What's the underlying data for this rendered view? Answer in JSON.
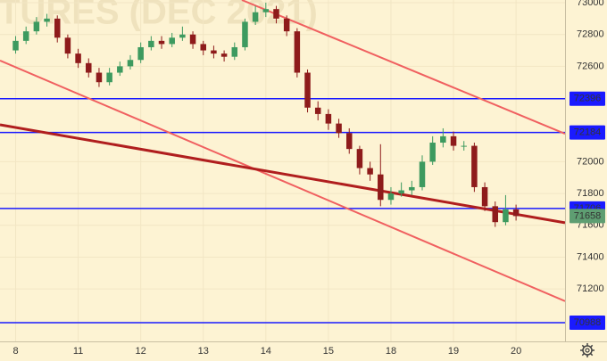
{
  "chart_data": {
    "type": "candlestick",
    "title": "TURES (DEC 2021)",
    "x": [
      0,
      1,
      2,
      3,
      4,
      5,
      6,
      7,
      8,
      9,
      10,
      11,
      12,
      13,
      14,
      15,
      16,
      17,
      18,
      19,
      20,
      21,
      22,
      23,
      24,
      25,
      26,
      27,
      28,
      29,
      30,
      31,
      32,
      33,
      34,
      35,
      36,
      37,
      38,
      39,
      40,
      41,
      42,
      43,
      44,
      45,
      46,
      47,
      48
    ],
    "ohlc": [
      [
        72700,
        72790,
        72680,
        72760
      ],
      [
        72760,
        72850,
        72740,
        72820
      ],
      [
        72820,
        72910,
        72800,
        72880
      ],
      [
        72880,
        72930,
        72850,
        72900
      ],
      [
        72900,
        72920,
        72750,
        72780
      ],
      [
        72780,
        72800,
        72650,
        72680
      ],
      [
        72680,
        72710,
        72590,
        72620
      ],
      [
        72620,
        72650,
        72530,
        72560
      ],
      [
        72560,
        72590,
        72470,
        72500
      ],
      [
        72500,
        72590,
        72480,
        72560
      ],
      [
        72560,
        72630,
        72540,
        72600
      ],
      [
        72600,
        72670,
        72580,
        72640
      ],
      [
        72640,
        72750,
        72620,
        72720
      ],
      [
        72720,
        72790,
        72700,
        72760
      ],
      [
        72760,
        72790,
        72710,
        72740
      ],
      [
        72740,
        72810,
        72720,
        72780
      ],
      [
        72780,
        72850,
        72760,
        72800
      ],
      [
        72800,
        72820,
        72710,
        72740
      ],
      [
        72740,
        72760,
        72670,
        72700
      ],
      [
        72700,
        72730,
        72650,
        72680
      ],
      [
        72680,
        72700,
        72630,
        72660
      ],
      [
        72660,
        72750,
        72640,
        72720
      ],
      [
        72720,
        72900,
        72700,
        72880
      ],
      [
        72880,
        72980,
        72860,
        72940
      ],
      [
        72940,
        73000,
        72910,
        72960
      ],
      [
        72960,
        72980,
        72870,
        72900
      ],
      [
        72900,
        72920,
        72790,
        72820
      ],
      [
        72820,
        72840,
        72530,
        72560
      ],
      [
        72560,
        72580,
        72310,
        72340
      ],
      [
        72340,
        72380,
        72260,
        72300
      ],
      [
        72300,
        72330,
        72200,
        72240
      ],
      [
        72240,
        72270,
        72150,
        72180
      ],
      [
        72180,
        72210,
        72050,
        72080
      ],
      [
        72080,
        72100,
        71920,
        71960
      ],
      [
        71960,
        72000,
        71880,
        71920
      ],
      [
        71920,
        72110,
        71720,
        71760
      ],
      [
        71760,
        71840,
        71730,
        71800
      ],
      [
        71800,
        71870,
        71780,
        71820
      ],
      [
        71820,
        71880,
        71790,
        71840
      ],
      [
        71840,
        72040,
        71820,
        72000
      ],
      [
        72000,
        72160,
        71980,
        72120
      ],
      [
        72120,
        72210,
        72090,
        72160
      ],
      [
        72160,
        72190,
        72070,
        72100
      ],
      [
        72100,
        72130,
        72070,
        72100
      ],
      [
        72100,
        72120,
        71810,
        71840
      ],
      [
        71840,
        71870,
        71690,
        71720
      ],
      [
        71720,
        71750,
        71590,
        71620
      ],
      [
        71620,
        71790,
        71600,
        71700
      ],
      [
        71700,
        71730,
        71630,
        71658
      ]
    ],
    "up_color": "#3d9a5f",
    "down_color": "#8e1b1b",
    "xlim": [
      -1.5,
      52.7
    ],
    "xticks": [
      {
        "value": 0,
        "label": "8"
      },
      {
        "value": 6,
        "label": "11"
      },
      {
        "value": 12,
        "label": "12"
      },
      {
        "value": 18,
        "label": "13"
      },
      {
        "value": 24,
        "label": "14"
      },
      {
        "value": 30,
        "label": "15"
      },
      {
        "value": 36,
        "label": "18"
      },
      {
        "value": 42,
        "label": "19"
      },
      {
        "value": 48,
        "label": "20"
      }
    ],
    "ylim": [
      70870,
      73017
    ],
    "yticks": [
      71200,
      71400,
      71600,
      71800,
      72000,
      72600,
      72800,
      73000
    ],
    "grid": true,
    "levels": [
      72396,
      72184,
      71706,
      70988
    ],
    "level_color": "#1a1aff",
    "last_price": 71658,
    "last_color": "#5e9e72",
    "trend_lines": [
      {
        "x": [
          21.7,
          52.7
        ],
        "y": [
          73017,
          72176
        ],
        "color": "#f06060",
        "width": 2
      },
      {
        "x": [
          -1.5,
          52.7
        ],
        "y": [
          72636,
          71123
        ],
        "color": "#f06060",
        "width": 2
      },
      {
        "x": [
          -1.5,
          52.7
        ],
        "y": [
          72232,
          71616
        ],
        "color": "#b01e1e",
        "width": 3
      }
    ]
  }
}
